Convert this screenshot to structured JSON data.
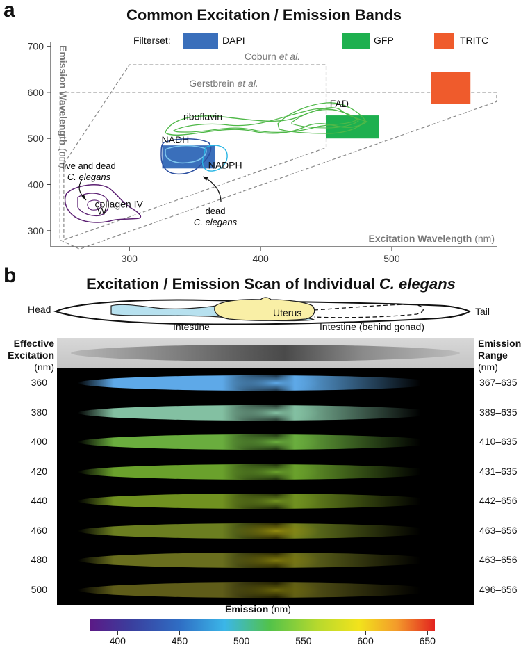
{
  "panel_a": {
    "letter": "a",
    "title": "Common Excitation / Emission Bands",
    "legend": {
      "prefix": "Filterset:",
      "items": [
        {
          "label": "DAPI",
          "color": "#3a6fbb"
        },
        {
          "label": "GFP",
          "color": "#1eb04f"
        },
        {
          "label": "TRITC",
          "color": "#ef5b2c"
        }
      ]
    },
    "chart_data": {
      "type": "scatter",
      "title": "Common Excitation / Emission Bands",
      "xlabel": "Excitation Wavelength",
      "xlabel_unit": "(nm)",
      "ylabel": "Emission Wavelength",
      "ylabel_unit": "(nm)",
      "xlim": [
        240,
        580
      ],
      "ylim": [
        265,
        710
      ],
      "xticks": [
        300,
        400,
        500
      ],
      "yticks": [
        300,
        400,
        500,
        600,
        700
      ],
      "filtersets": [
        {
          "name": "DAPI",
          "excitation": [
            325,
            365
          ],
          "emission": [
            435,
            485
          ],
          "color": "#3a6fbb"
        },
        {
          "name": "GFP",
          "excitation": [
            450,
            490
          ],
          "emission": [
            500,
            550
          ],
          "color": "#1eb04f"
        },
        {
          "name": "TRITC",
          "excitation": [
            530,
            560
          ],
          "emission": [
            575,
            645
          ],
          "color": "#ef5b2c"
        }
      ],
      "annotations": [
        {
          "text": "riboflavin",
          "x": 356,
          "y": 540
        },
        {
          "text": "FAD",
          "x": 460,
          "y": 568
        },
        {
          "text": "NADH",
          "x": 335,
          "y": 490
        },
        {
          "text": "NADPH",
          "x": 373,
          "y": 435
        },
        {
          "text": "collagen IV",
          "x": 292,
          "y": 350
        },
        {
          "text": "W",
          "x": 279,
          "y": 335
        }
      ],
      "notes": {
        "live_dead": {
          "line1": "live and dead",
          "line2": "C. elegans"
        },
        "dead": {
          "line1": "dead",
          "line2": "C. elegans"
        },
        "coburn": {
          "name": "Coburn",
          "etal": "et al."
        },
        "gerstbrein": {
          "name": "Gerstbrein",
          "etal": "et al."
        }
      },
      "reference_regions": [
        {
          "name": "Coburn et al.",
          "excitation": [
            250,
            450
          ],
          "emission": [
            280,
            660
          ]
        },
        {
          "name": "Gerstbrein et al.",
          "excitation": [
            247,
            580
          ],
          "emission": [
            260,
            600
          ]
        }
      ]
    }
  },
  "panel_b": {
    "letter": "b",
    "title_prefix": "Excitation / Emission Scan of Individual",
    "title_species": "C. elegans",
    "anatomy": {
      "head": "Head",
      "tail": "Tail",
      "uterus": "Uterus",
      "intestine": "Intestine",
      "intestine_behind": "Intestine (behind gonad)"
    },
    "left_header": [
      "Effective",
      "Excitation",
      "(nm)"
    ],
    "right_header": [
      "Emission",
      "Range",
      "(nm)"
    ],
    "scan": {
      "excitation_nm": [
        "360",
        "380",
        "400",
        "420",
        "440",
        "460",
        "480",
        "500"
      ],
      "emission_range_nm": [
        "367–635",
        "389–635",
        "410–635",
        "431–635",
        "442–656",
        "463–656",
        "463–656",
        "496–656"
      ],
      "dominant_colors": [
        "#5ea9e8",
        "#8fd1b0",
        "#7fcf4a",
        "#8cd43a",
        "#a6d630",
        "#b3d236",
        "#c9d43a",
        "#d6d23a"
      ]
    },
    "colorbar": {
      "label": "Emission",
      "unit": "(nm)",
      "min": 378,
      "max": 656,
      "ticks": [
        "400",
        "450",
        "500",
        "550",
        "600",
        "650"
      ],
      "tick_values": [
        400,
        450,
        500,
        550,
        600,
        650
      ]
    }
  }
}
